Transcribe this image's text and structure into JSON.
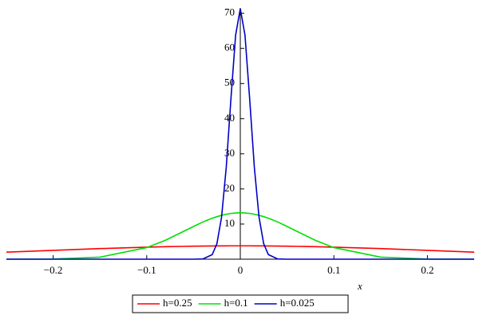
{
  "chart_data": {
    "type": "line",
    "xlabel": "x",
    "x": [
      -0.25,
      -0.2,
      -0.15,
      -0.1,
      -0.08,
      -0.06,
      -0.05,
      -0.04,
      -0.03,
      -0.025,
      -0.02,
      -0.015,
      -0.01,
      -0.005,
      0,
      0.005,
      0.01,
      0.015,
      0.02,
      0.025,
      0.03,
      0.04,
      0.05,
      0.06,
      0.08,
      0.1,
      0.15,
      0.2,
      0.25
    ],
    "series": [
      {
        "name": "h=0.25",
        "color": "#ff0000",
        "values": [
          2.0,
          2.52,
          3.02,
          3.43,
          3.55,
          3.66,
          3.7,
          3.74,
          3.77,
          3.78,
          3.78,
          3.79,
          3.8,
          3.8,
          3.8,
          3.8,
          3.8,
          3.79,
          3.78,
          3.78,
          3.77,
          3.74,
          3.7,
          3.66,
          3.55,
          3.43,
          3.02,
          2.52,
          2.0
        ]
      },
      {
        "name": "h=0.1",
        "color": "#00e000",
        "values": [
          0,
          0.05,
          0.58,
          3.3,
          5.4,
          8.0,
          9.3,
          10.6,
          11.65,
          12.1,
          12.5,
          12.8,
          13.02,
          13.15,
          13.2,
          13.15,
          13.02,
          12.8,
          12.5,
          12.1,
          11.65,
          10.6,
          9.3,
          8.0,
          5.4,
          3.3,
          0.58,
          0.05,
          0
        ]
      },
      {
        "name": "h=0.025",
        "color": "#0000c8",
        "values": [
          0,
          0,
          0,
          0,
          0,
          0,
          0,
          0.06,
          1.3,
          4.4,
          12.0,
          26.2,
          45.7,
          63.8,
          71.3,
          63.8,
          45.7,
          26.2,
          12.0,
          4.4,
          1.3,
          0.06,
          0,
          0,
          0,
          0,
          0,
          0,
          0
        ]
      }
    ],
    "xlim": [
      -0.25,
      0.25
    ],
    "ylim": [
      0,
      71.5
    ],
    "xticks": [
      {
        "value": -0.2,
        "label": "−0.2"
      },
      {
        "value": -0.1,
        "label": "−0.1"
      },
      0,
      0.1,
      0.2
    ],
    "yticks": [
      10,
      20,
      30,
      40,
      50,
      60,
      70
    ],
    "legend": "bottom"
  }
}
